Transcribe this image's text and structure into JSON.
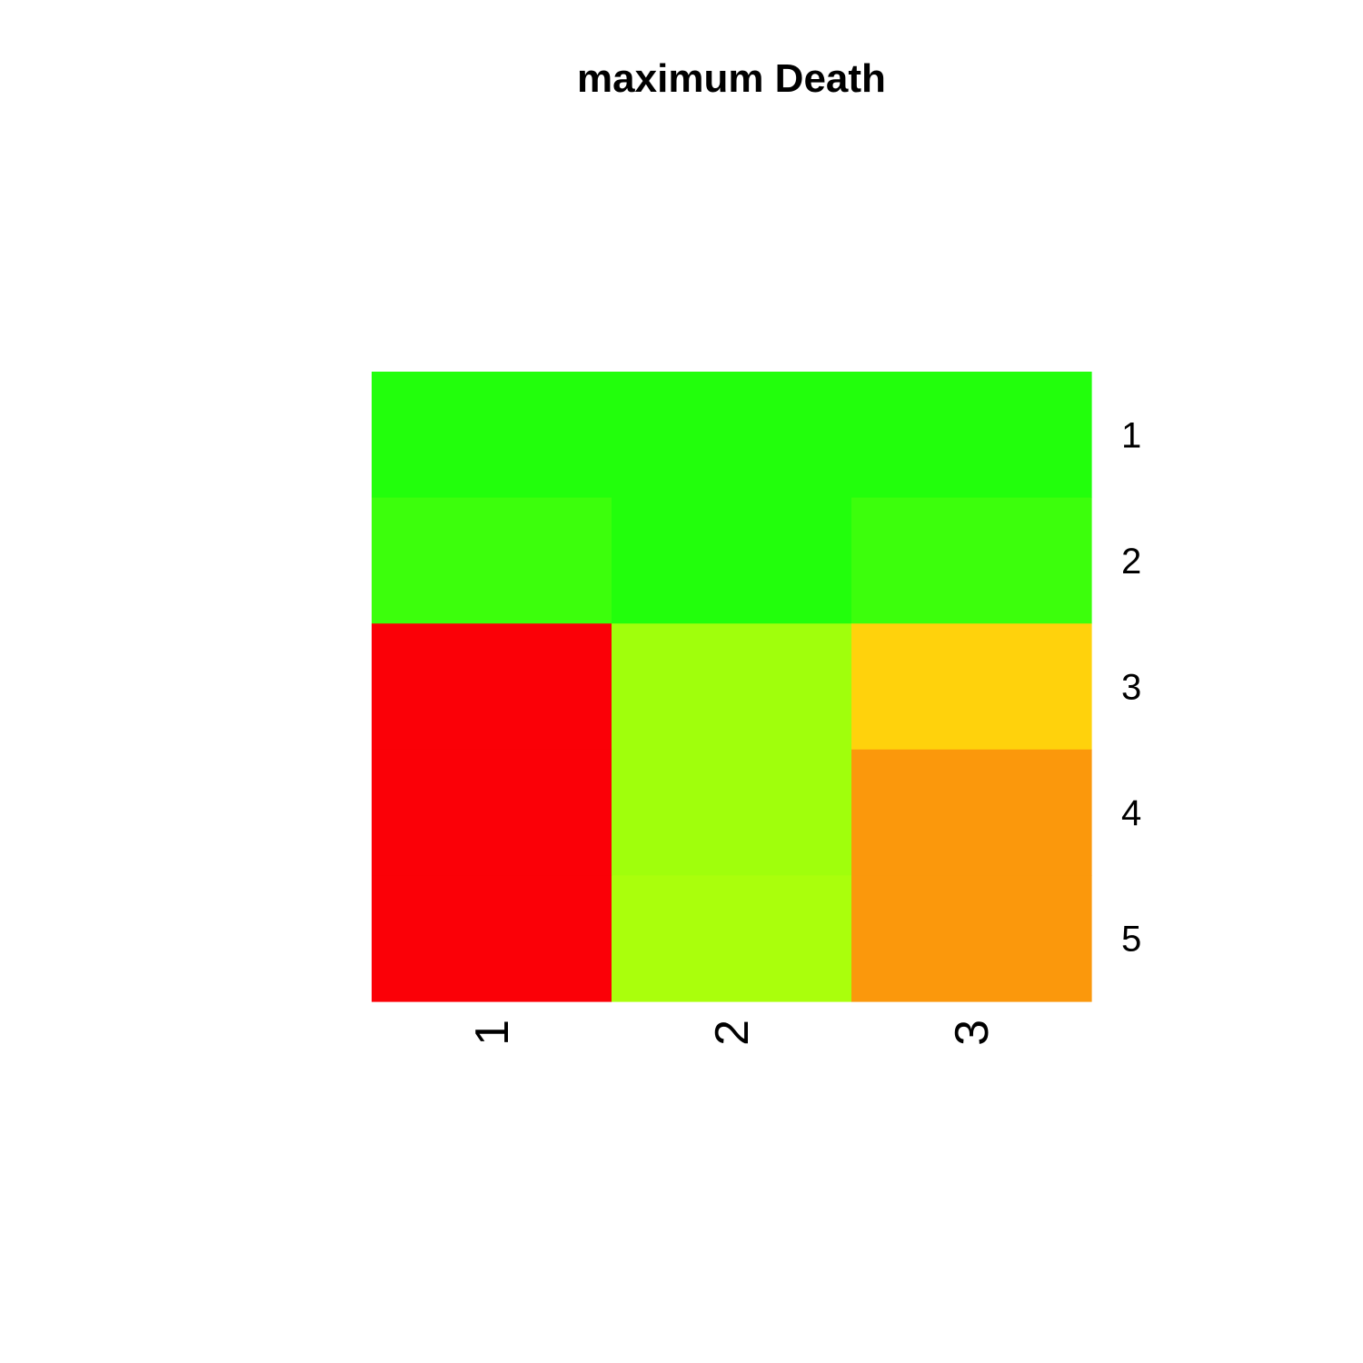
{
  "chart_data": {
    "type": "heatmap",
    "title": "maximum Death",
    "xlabel": "",
    "ylabel": "",
    "columns": [
      "1",
      "2",
      "3"
    ],
    "rows": [
      "1",
      "2",
      "3",
      "4",
      "5"
    ],
    "cell_colors": [
      [
        "#22ff0c",
        "#22ff0c",
        "#22ff0c"
      ],
      [
        "#3cff0c",
        "#22ff0c",
        "#3cff0c"
      ],
      [
        "#fb0007",
        "#a0ff0c",
        "#ffd20c"
      ],
      [
        "#fb0007",
        "#a0ff0c",
        "#fb980c"
      ],
      [
        "#fb0007",
        "#aaff0c",
        "#fb980c"
      ]
    ],
    "color_scale": "green (low) to red (high)",
    "legend": "none",
    "grid": false
  }
}
